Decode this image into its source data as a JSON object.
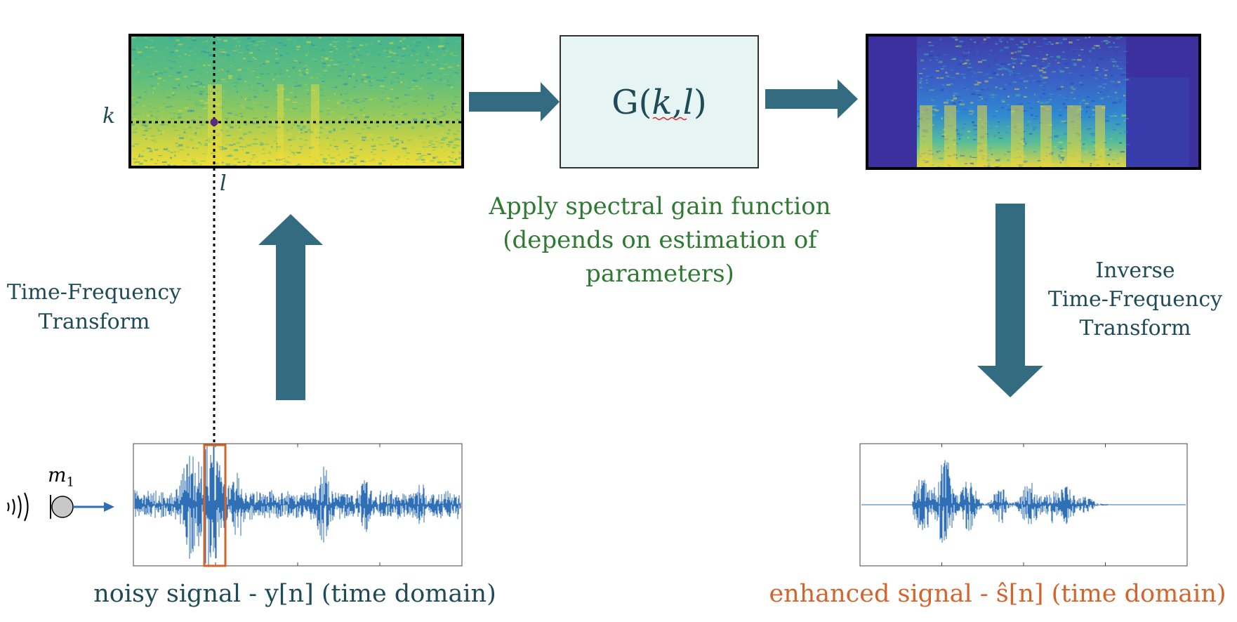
{
  "labels": {
    "k": "k",
    "l": "l",
    "mic": "m",
    "mic_sub": "1",
    "gain_prefix": "G(",
    "gain_k": "k",
    "gain_comma": ",",
    "gain_l": "l",
    "gain_suffix": ")",
    "tft_line1": "Time-Frequency",
    "tft_line2": "Transform",
    "gain_line1": "Apply spectral gain function",
    "gain_line2": "(depends on estimation of",
    "gain_line3": "parameters)",
    "itft_line1": "Inverse",
    "itft_line2": "Time-Frequency",
    "itft_line3": "Transform",
    "noisy_caption": "noisy signal - y[n] (time domain)",
    "enhanced_caption": "enhanced signal - ŝ[n] (time domain)"
  },
  "colors": {
    "arrow": "#336b80",
    "teal_text": "#1f4b57",
    "green_text": "#2f7a33",
    "orange": "#d2642c",
    "waveform": "#2e6fb5",
    "gain_box_fill": "#e6f4f4",
    "dot": "#5b2a86"
  },
  "icons": {
    "sound_waves": "sound-waves-icon",
    "microphone": "microphone-icon"
  }
}
